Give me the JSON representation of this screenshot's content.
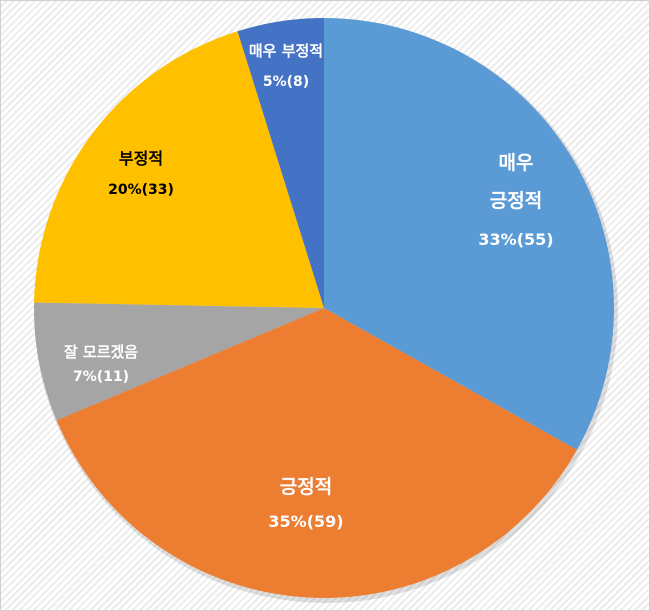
{
  "chart_data": {
    "type": "pie",
    "title": "",
    "start_angle": "12 o'clock",
    "direction": "clockwise",
    "slices": [
      {
        "label": "매우 긍정적",
        "label_lines": [
          "매우",
          "긍정적"
        ],
        "percent_label": "33%(55)",
        "value": 55,
        "percent": 33,
        "color": "#5B9BD5",
        "text_color": "#FFFFFF"
      },
      {
        "label": "긍정적",
        "label_lines": [
          "긍정적"
        ],
        "percent_label": "35%(59)",
        "value": 59,
        "percent": 35,
        "color": "#ED7D31",
        "text_color": "#FFFFFF"
      },
      {
        "label": "잘 모르겠음",
        "label_lines": [
          "잘 모르겠음"
        ],
        "percent_label": "7%(11)",
        "value": 11,
        "percent": 7,
        "color": "#A5A5A5",
        "text_color": "#FFFFFF"
      },
      {
        "label": "부정적",
        "label_lines": [
          "부정적"
        ],
        "percent_label": "20%(33)",
        "value": 33,
        "percent": 20,
        "color": "#FFC000",
        "text_color": "#000000"
      },
      {
        "label": "매우 부정적",
        "label_lines": [
          "매우 부정적"
        ],
        "percent_label": "5%(8)",
        "value": 8,
        "percent": 5,
        "color": "#4472C4",
        "text_color": "#FFFFFF"
      }
    ],
    "legend": "none"
  }
}
